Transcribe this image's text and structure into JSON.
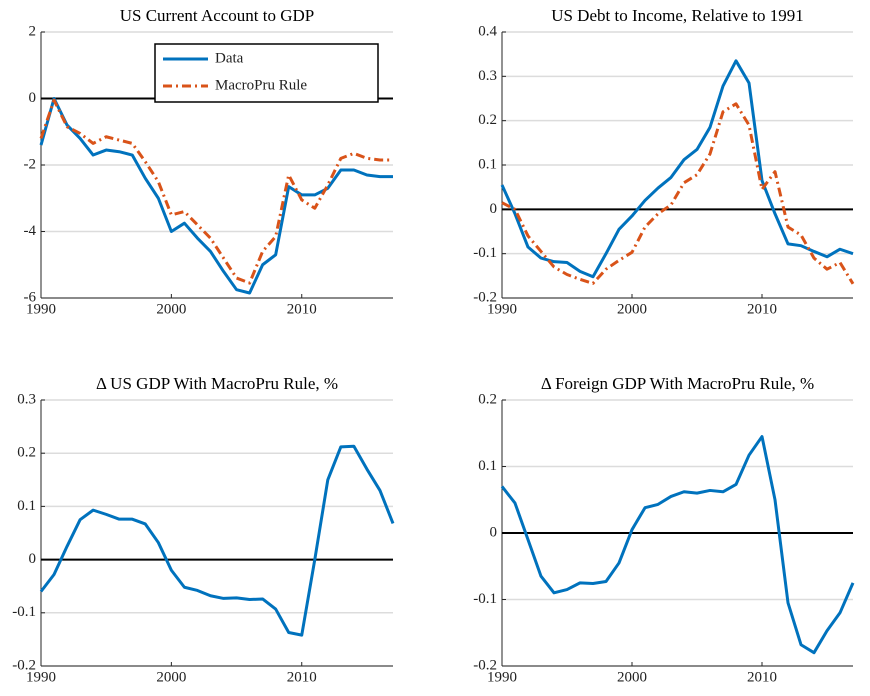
{
  "chart_data": [
    {
      "type": "line",
      "title": "US Current Account to GDP",
      "x": [
        1990,
        1991,
        1992,
        1993,
        1994,
        1995,
        1996,
        1997,
        1998,
        1999,
        2000,
        2001,
        2002,
        2003,
        2004,
        2005,
        2006,
        2007,
        2008,
        2009,
        2010,
        2011,
        2012,
        2013,
        2014,
        2015,
        2016,
        2017
      ],
      "series": [
        {
          "name": "Data",
          "color": "#0072bd",
          "linestyle": "solid",
          "values": [
            -1.4,
            0,
            -0.8,
            -1.2,
            -1.7,
            -1.55,
            -1.6,
            -1.7,
            -2.4,
            -3.0,
            -4.0,
            -3.75,
            -4.2,
            -4.6,
            -5.2,
            -5.75,
            -5.85,
            -5.0,
            -4.7,
            -2.65,
            -2.9,
            -2.9,
            -2.7,
            -2.15,
            -2.15,
            -2.3,
            -2.35,
            -2.35
          ]
        },
        {
          "name": "MacroPru Rule",
          "color": "#d95319",
          "linestyle": "dashdot",
          "values": [
            -1.2,
            -0.05,
            -0.85,
            -1.05,
            -1.35,
            -1.15,
            -1.25,
            -1.35,
            -1.9,
            -2.5,
            -3.5,
            -3.4,
            -3.8,
            -4.2,
            -4.8,
            -5.4,
            -5.55,
            -4.6,
            -4.15,
            -2.3,
            -3.05,
            -3.3,
            -2.6,
            -1.8,
            -1.65,
            -1.8,
            -1.85,
            -1.85
          ]
        }
      ],
      "xlim": [
        1990,
        2017
      ],
      "xticks": [
        1990,
        2000,
        2010
      ],
      "ylim": [
        -6,
        2
      ],
      "yticks": [
        -6,
        -4,
        -2,
        0,
        2
      ],
      "grid": true,
      "zero_line": true,
      "legend": "upper right"
    },
    {
      "type": "line",
      "title": "US Debt to Income, Relative to 1991",
      "x": [
        1990,
        1991,
        1992,
        1993,
        1994,
        1995,
        1996,
        1997,
        1998,
        1999,
        2000,
        2001,
        2002,
        2003,
        2004,
        2005,
        2006,
        2007,
        2008,
        2009,
        2010,
        2011,
        2012,
        2013,
        2014,
        2015,
        2016,
        2017
      ],
      "series": [
        {
          "color": "#0072bd",
          "linestyle": "solid",
          "values": [
            0.055,
            -0.01,
            -0.085,
            -0.11,
            -0.118,
            -0.12,
            -0.14,
            -0.152,
            -0.1,
            -0.045,
            -0.015,
            0.02,
            0.048,
            0.072,
            0.112,
            0.135,
            0.185,
            0.278,
            0.335,
            0.285,
            0.065,
            -0.01,
            -0.078,
            -0.082,
            -0.095,
            -0.107,
            -0.09,
            -0.1
          ]
        },
        {
          "color": "#d95319",
          "linestyle": "dashdot",
          "values": [
            0.015,
            0,
            -0.06,
            -0.095,
            -0.13,
            -0.147,
            -0.158,
            -0.167,
            -0.135,
            -0.115,
            -0.097,
            -0.04,
            -0.01,
            0.01,
            0.06,
            0.078,
            0.125,
            0.22,
            0.238,
            0.19,
            0.045,
            0.085,
            -0.04,
            -0.058,
            -0.11,
            -0.135,
            -0.12,
            -0.168
          ]
        }
      ],
      "xlim": [
        1990,
        2017
      ],
      "xticks": [
        1990,
        2000,
        2010
      ],
      "ylim": [
        -0.2,
        0.4
      ],
      "yticks": [
        -0.2,
        -0.1,
        0,
        0.1,
        0.2,
        0.3,
        0.4
      ],
      "grid": true,
      "zero_line": true
    },
    {
      "type": "line",
      "title": "Δ US GDP With MacroPru Rule, %",
      "x": [
        1990,
        1991,
        1992,
        1993,
        1994,
        1995,
        1996,
        1997,
        1998,
        1999,
        2000,
        2001,
        2002,
        2003,
        2004,
        2005,
        2006,
        2007,
        2008,
        2009,
        2010,
        2011,
        2012,
        2013,
        2014,
        2015,
        2016,
        2017
      ],
      "color": "#0072bd",
      "values": [
        -0.06,
        -0.028,
        0.025,
        0.075,
        0.093,
        0.085,
        0.076,
        0.076,
        0.067,
        0.032,
        -0.02,
        -0.052,
        -0.058,
        -0.068,
        -0.073,
        -0.072,
        -0.075,
        -0.074,
        -0.093,
        -0.137,
        -0.142,
        0,
        0.15,
        0.212,
        0.213,
        0.17,
        0.13,
        0.068
      ],
      "xlim": [
        1990,
        2017
      ],
      "xticks": [
        1990,
        2000,
        2010
      ],
      "ylim": [
        -0.2,
        0.3
      ],
      "yticks": [
        -0.2,
        -0.1,
        0,
        0.1,
        0.2,
        0.3
      ],
      "grid": true,
      "zero_line": true
    },
    {
      "type": "line",
      "title": "Δ Foreign GDP With MacroPru Rule, %",
      "x": [
        1990,
        1991,
        1992,
        1993,
        1994,
        1995,
        1996,
        1997,
        1998,
        1999,
        2000,
        2001,
        2002,
        2003,
        2004,
        2005,
        2006,
        2007,
        2008,
        2009,
        2010,
        2011,
        2012,
        2013,
        2014,
        2015,
        2016,
        2017
      ],
      "color": "#0072bd",
      "values": [
        0.07,
        0.045,
        -0.01,
        -0.065,
        -0.09,
        -0.085,
        -0.075,
        -0.076,
        -0.073,
        -0.045,
        0.005,
        0.038,
        0.043,
        0.055,
        0.062,
        0.06,
        0.064,
        0.062,
        0.073,
        0.117,
        0.145,
        0.05,
        -0.105,
        -0.168,
        -0.18,
        -0.147,
        -0.12,
        -0.075
      ],
      "xlim": [
        1990,
        2017
      ],
      "xticks": [
        1990,
        2000,
        2010
      ],
      "ylim": [
        -0.2,
        0.2
      ],
      "yticks": [
        -0.2,
        -0.1,
        0,
        0.1,
        0.2
      ],
      "grid": true,
      "zero_line": true
    }
  ]
}
